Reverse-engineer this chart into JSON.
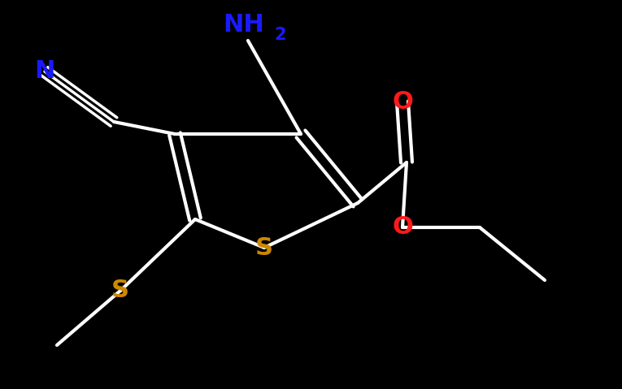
{
  "background_color": "#000000",
  "bond_color": "#ffffff",
  "bond_width": 3.0,
  "atom_colors": {
    "N_blue": "#1a1aff",
    "O_red": "#ff1a1a",
    "S_gold": "#cc8800",
    "white": "#ffffff"
  },
  "font_size_main": 22,
  "font_size_sub": 15,
  "figsize": [
    7.65,
    4.79
  ],
  "dpi": 100,
  "xlim": [
    0.0,
    7.65
  ],
  "ylim": [
    0.0,
    4.79
  ]
}
